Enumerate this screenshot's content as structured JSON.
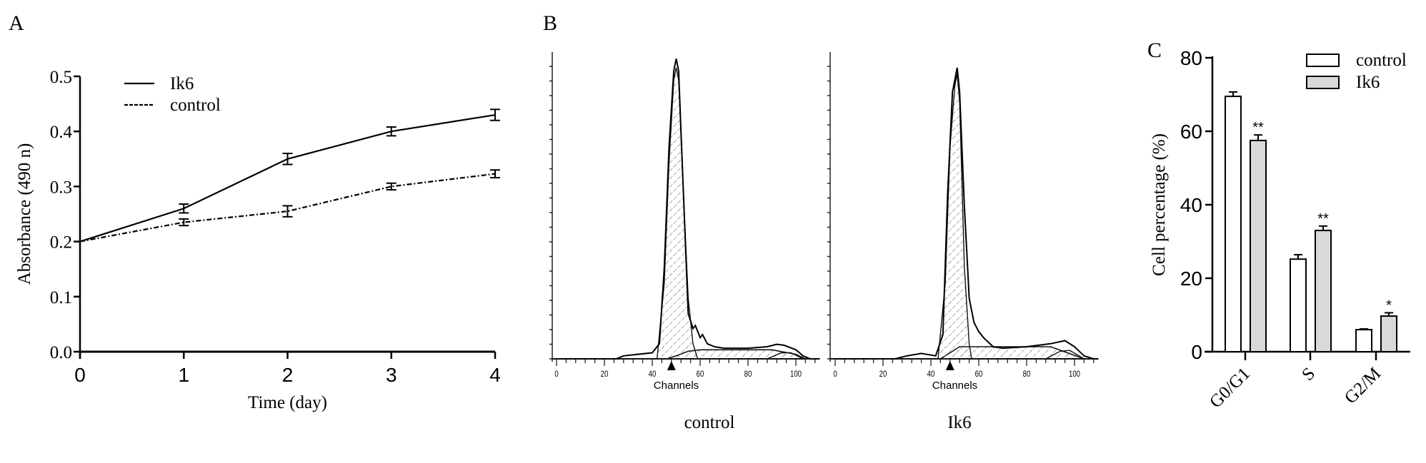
{
  "panels": {
    "a": "A",
    "b": "B",
    "c": "C"
  },
  "chart_data": [
    {
      "panel": "A",
      "type": "line",
      "xlabel": "Time (day)",
      "ylabel": "Absorbance (490 n)",
      "xlim": [
        0,
        4
      ],
      "ylim": [
        0,
        0.5
      ],
      "xticks": [
        "0",
        "1",
        "2",
        "3",
        "4"
      ],
      "yticks": [
        "0.0",
        "0.1",
        "0.2",
        "0.3",
        "0.4",
        "0.5"
      ],
      "legend_position": "top-left",
      "x": [
        0,
        1,
        2,
        3,
        4
      ],
      "series": [
        {
          "name": "Ik6",
          "style": "solid",
          "values": [
            0.2,
            0.26,
            0.35,
            0.4,
            0.43
          ],
          "errors": [
            0,
            0.008,
            0.01,
            0.008,
            0.01
          ]
        },
        {
          "name": "control",
          "style": "dashed",
          "values": [
            0.2,
            0.235,
            0.255,
            0.3,
            0.323
          ],
          "errors": [
            0,
            0.006,
            0.01,
            0.006,
            0.007
          ]
        }
      ]
    },
    {
      "panel": "B",
      "type": "area",
      "histograms": [
        {
          "caption": "control",
          "xlabel": "Channels",
          "xticks": [
            "0",
            "20",
            "40",
            "60",
            "80",
            "100"
          ],
          "xlim": [
            0,
            110
          ],
          "marker_channel": 48,
          "total": [
            [
              0,
              0
            ],
            [
              25,
              0
            ],
            [
              28,
              1
            ],
            [
              40,
              2
            ],
            [
              43,
              5
            ],
            [
              45,
              30
            ],
            [
              47,
              70
            ],
            [
              49,
              95
            ],
            [
              50,
              99
            ],
            [
              51,
              95
            ],
            [
              52,
              75
            ],
            [
              54,
              35
            ],
            [
              55,
              15
            ],
            [
              57,
              10
            ],
            [
              58,
              11
            ],
            [
              60,
              7
            ],
            [
              61,
              8
            ],
            [
              63,
              5
            ],
            [
              66,
              4
            ],
            [
              70,
              3.5
            ],
            [
              80,
              3.5
            ],
            [
              88,
              4
            ],
            [
              92,
              4.8
            ],
            [
              95,
              4.5
            ],
            [
              100,
              3
            ],
            [
              103,
              1
            ],
            [
              106,
              0
            ],
            [
              110,
              0
            ]
          ],
          "g1": [
            [
              42,
              0
            ],
            [
              45,
              25
            ],
            [
              47,
              65
            ],
            [
              49,
              92
            ],
            [
              50,
              96
            ],
            [
              51,
              92
            ],
            [
              53,
              55
            ],
            [
              55,
              20
            ],
            [
              57,
              5
            ],
            [
              59,
              0
            ]
          ],
          "s": [
            [
              46,
              0
            ],
            [
              50,
              1
            ],
            [
              55,
              2.5
            ],
            [
              60,
              3
            ],
            [
              90,
              3
            ],
            [
              100,
              1.5
            ],
            [
              104,
              0
            ]
          ],
          "g2": [
            [
              88,
              0
            ],
            [
              94,
              2
            ],
            [
              98,
              2
            ],
            [
              103,
              0
            ]
          ]
        },
        {
          "caption": "Ik6",
          "xlabel": "Channels",
          "xticks": [
            "0",
            "20",
            "40",
            "60",
            "80",
            "100"
          ],
          "xlim": [
            0,
            110
          ],
          "marker_channel": 48,
          "total": [
            [
              0,
              0
            ],
            [
              25,
              0
            ],
            [
              30,
              1
            ],
            [
              36,
              1.8
            ],
            [
              42,
              1
            ],
            [
              45,
              8
            ],
            [
              47,
              55
            ],
            [
              49,
              88
            ],
            [
              51,
              96
            ],
            [
              52,
              88
            ],
            [
              54,
              50
            ],
            [
              55,
              35
            ],
            [
              56,
              20
            ],
            [
              58,
              12
            ],
            [
              60,
              9
            ],
            [
              62,
              7
            ],
            [
              66,
              4
            ],
            [
              70,
              3.5
            ],
            [
              80,
              4
            ],
            [
              90,
              5
            ],
            [
              96,
              6
            ],
            [
              100,
              4
            ],
            [
              104,
              1
            ],
            [
              108,
              0
            ],
            [
              110,
              0
            ]
          ],
          "g1": [
            [
              43,
              0
            ],
            [
              46,
              25
            ],
            [
              48,
              70
            ],
            [
              50,
              90
            ],
            [
              51,
              94
            ],
            [
              52,
              85
            ],
            [
              54,
              30
            ],
            [
              56,
              5
            ],
            [
              57,
              0
            ]
          ],
          "s": [
            [
              44,
              0
            ],
            [
              48,
              2
            ],
            [
              52,
              4
            ],
            [
              60,
              4
            ],
            [
              90,
              4
            ],
            [
              97,
              2
            ],
            [
              104,
              0
            ]
          ],
          "g2": [
            [
              88,
              0
            ],
            [
              94,
              2.5
            ],
            [
              98,
              2.8
            ],
            [
              104,
              0
            ]
          ]
        }
      ]
    },
    {
      "panel": "C",
      "type": "bar",
      "ylabel": "Cell percentage (%)",
      "ylim": [
        0,
        80
      ],
      "yticks": [
        "0",
        "20",
        "40",
        "60",
        "80"
      ],
      "categories": [
        "G0/G1",
        "S",
        "G2/M"
      ],
      "legend_position": "top-right",
      "series": [
        {
          "name": "control",
          "color": "#ffffff",
          "values": [
            69.5,
            25.2,
            6.0
          ],
          "errors": [
            1.2,
            1.2,
            0.2
          ],
          "significance": [
            "",
            "",
            ""
          ]
        },
        {
          "name": "Ik6",
          "color": "#d9d9d9",
          "values": [
            57.5,
            33.0,
            9.7
          ],
          "errors": [
            1.5,
            1.2,
            0.9
          ],
          "significance": [
            "**",
            "**",
            "*"
          ]
        }
      ]
    }
  ]
}
